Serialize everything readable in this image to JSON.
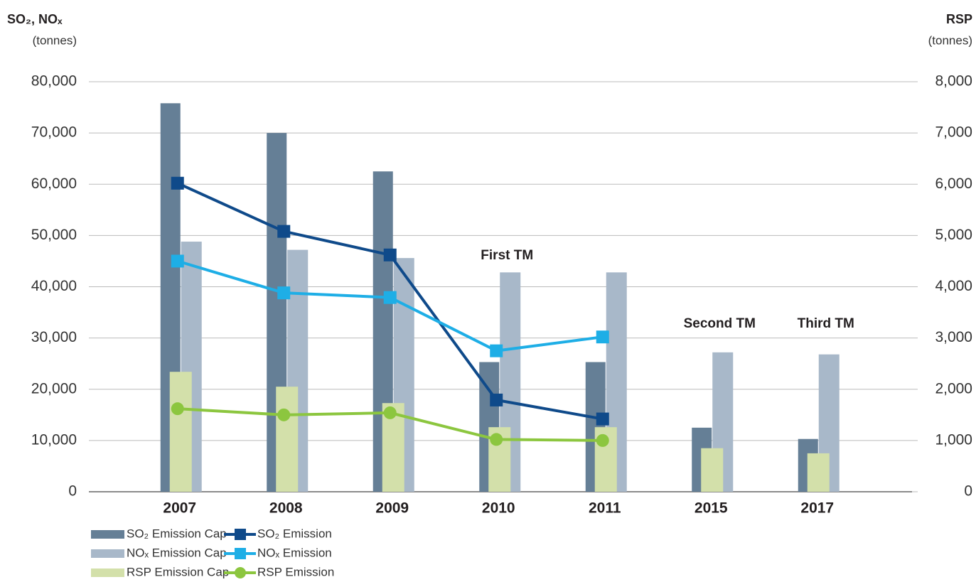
{
  "chart_data": {
    "type": "bar",
    "y_label": "SO₂, NOₓ",
    "y_unit": "(tonnes)",
    "y2_label": "RSP",
    "y2_unit": "(tonnes)",
    "categories": [
      "2007",
      "2008",
      "2009",
      "2010",
      "2011",
      "2015",
      "2017"
    ],
    "ylim": [
      0,
      80000
    ],
    "yticks": [
      0,
      {
        "value": 10000,
        "label": "10,000"
      },
      {
        "value": 20000,
        "label": "20,000"
      },
      {
        "value": 30000,
        "label": "30,000"
      },
      {
        "value": 40000,
        "label": "40,000"
      },
      {
        "value": 50000,
        "label": "50,000"
      },
      {
        "value": 60000,
        "label": "60,000"
      },
      {
        "value": 70000,
        "label": "70,000"
      },
      {
        "value": 80000,
        "label": "80,000"
      }
    ],
    "y2lim": [
      0,
      8000
    ],
    "y2ticks": [
      0,
      {
        "value": 1000,
        "label": "1,000"
      },
      {
        "value": 2000,
        "label": "2,000"
      },
      {
        "value": 3000,
        "label": "3,000"
      },
      {
        "value": 4000,
        "label": "4,000"
      },
      {
        "value": 5000,
        "label": "5,000"
      },
      {
        "value": 6000,
        "label": "6,000"
      },
      {
        "value": 7000,
        "label": "7,000"
      },
      {
        "value": 8000,
        "label": "8,000"
      }
    ],
    "grid": true,
    "annotations": [
      {
        "text": "First TM",
        "category": "2010"
      },
      {
        "text": "Second TM",
        "category": "2015"
      },
      {
        "text": "Third TM",
        "category": "2017"
      }
    ],
    "series": [
      {
        "name": "SO₂ Emission Cap",
        "type": "bar",
        "color": "#657f96",
        "values": [
          75800,
          70000,
          62500,
          25300,
          25300,
          12500,
          10300
        ]
      },
      {
        "name": "NOₓ Emission Cap",
        "type": "bar",
        "color": "#a8b8c9",
        "values": [
          48800,
          47200,
          45600,
          42800,
          42800,
          27200,
          26800
        ]
      },
      {
        "name": "RSP Emission Cap",
        "type": "bar",
        "axis": "y2",
        "color": "#d3e0aa",
        "values": [
          2340,
          2050,
          1730,
          1260,
          1260,
          850,
          750
        ]
      },
      {
        "name": "SO₂ Emission",
        "type": "line",
        "marker": "square",
        "color": "#0f4a8a",
        "values": [
          60200,
          50800,
          46200,
          17900,
          14200,
          null,
          null
        ]
      },
      {
        "name": "NOₓ Emission",
        "type": "line",
        "marker": "square",
        "color": "#1eaee6",
        "values": [
          45000,
          38800,
          37900,
          27500,
          30200,
          null,
          null
        ]
      },
      {
        "name": "RSP Emission",
        "type": "line",
        "marker": "circle",
        "axis": "y2",
        "color": "#8cc63f",
        "values": [
          1620,
          1500,
          1540,
          1020,
          1000,
          null,
          null
        ]
      }
    ]
  }
}
